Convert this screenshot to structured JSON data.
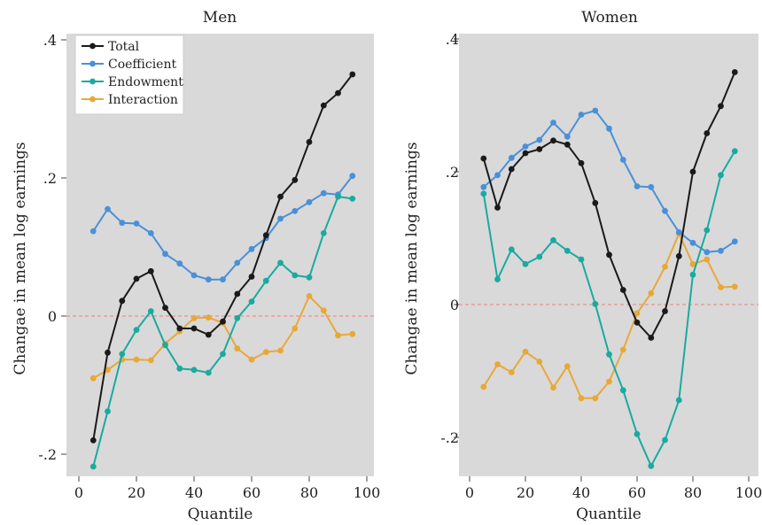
{
  "chart_data": [
    {
      "type": "line",
      "title": "Men",
      "xlabel": "Quantile",
      "ylabel": "Changae in mean log earnings",
      "xlim": [
        0,
        100
      ],
      "ylim": [
        -0.2,
        0.4
      ],
      "xticks": [
        0,
        20,
        40,
        60,
        80,
        100
      ],
      "xtick_labels": [
        "0",
        "20",
        "40",
        "60",
        "80",
        "100"
      ],
      "yticks": [
        -0.2,
        0,
        0.2,
        0.4
      ],
      "ytick_labels": [
        "-.2",
        "0",
        ".2",
        ".4"
      ],
      "zero_line": 0,
      "grid": false,
      "legend_position": "top-left",
      "x": [
        5,
        10,
        15,
        20,
        25,
        30,
        35,
        40,
        45,
        50,
        55,
        60,
        65,
        70,
        75,
        80,
        85,
        90,
        95
      ],
      "series": [
        {
          "name": "Total",
          "color": "#1a1a1a",
          "values": [
            -0.18,
            -0.053,
            0.022,
            0.054,
            0.065,
            0.012,
            -0.018,
            -0.018,
            -0.027,
            -0.008,
            0.032,
            0.057,
            0.117,
            0.173,
            0.197,
            0.252,
            0.305,
            0.323,
            0.35
          ]
        },
        {
          "name": "Coefficient",
          "color": "#4a90d9",
          "values": [
            0.123,
            0.155,
            0.135,
            0.134,
            0.12,
            0.09,
            0.076,
            0.059,
            0.053,
            0.053,
            0.077,
            0.097,
            0.113,
            0.141,
            0.152,
            0.165,
            0.178,
            0.176,
            0.203
          ]
        },
        {
          "name": "Endowment",
          "color": "#1aaaa0",
          "values": [
            -0.218,
            -0.138,
            -0.055,
            -0.02,
            0.007,
            -0.042,
            -0.076,
            -0.078,
            -0.082,
            -0.055,
            -0.003,
            0.021,
            0.051,
            0.077,
            0.059,
            0.056,
            0.12,
            0.173,
            0.17
          ]
        },
        {
          "name": "Interaction",
          "color": "#e8a838",
          "values": [
            -0.09,
            -0.078,
            -0.063,
            -0.063,
            -0.064,
            -0.04,
            -0.022,
            -0.003,
            -0.002,
            -0.01,
            -0.047,
            -0.063,
            -0.052,
            -0.05,
            -0.018,
            0.029,
            0.008,
            -0.028,
            -0.026
          ]
        }
      ]
    },
    {
      "type": "line",
      "title": "Women",
      "xlabel": "Quantile",
      "ylabel": "Changae in mean log earnings",
      "xlim": [
        0,
        100
      ],
      "ylim": [
        -0.2,
        0.4
      ],
      "xticks": [
        0,
        20,
        40,
        60,
        80,
        100
      ],
      "xtick_labels": [
        "0",
        "20",
        "40",
        "60",
        "80",
        "100"
      ],
      "yticks": [
        -0.2,
        0,
        0.2,
        0.4
      ],
      "ytick_labels": [
        "-.2",
        "0",
        ".2",
        ".4"
      ],
      "zero_line": 0,
      "grid": false,
      "x": [
        5,
        10,
        15,
        20,
        25,
        30,
        35,
        40,
        45,
        50,
        55,
        60,
        65,
        70,
        75,
        80,
        85,
        90,
        95
      ],
      "series": [
        {
          "name": "Total",
          "color": "#1a1a1a",
          "values": [
            0.22,
            0.146,
            0.204,
            0.228,
            0.234,
            0.247,
            0.241,
            0.213,
            0.153,
            0.075,
            0.022,
            -0.027,
            -0.05,
            -0.01,
            0.073,
            0.2,
            0.258,
            0.299,
            0.35
          ]
        },
        {
          "name": "Coefficient",
          "color": "#4a90d9",
          "values": [
            0.177,
            0.195,
            0.221,
            0.238,
            0.248,
            0.274,
            0.253,
            0.286,
            0.292,
            0.265,
            0.218,
            0.178,
            0.177,
            0.141,
            0.109,
            0.093,
            0.079,
            0.081,
            0.095
          ]
        },
        {
          "name": "Endowment",
          "color": "#1aaaa0",
          "values": [
            0.167,
            0.038,
            0.083,
            0.061,
            0.072,
            0.097,
            0.081,
            0.068,
            0.001,
            -0.075,
            -0.129,
            -0.195,
            -0.243,
            -0.204,
            -0.144,
            0.045,
            0.112,
            0.195,
            0.231
          ]
        },
        {
          "name": "Interaction",
          "color": "#e8a838",
          "values": [
            -0.124,
            -0.09,
            -0.102,
            -0.071,
            -0.086,
            -0.125,
            -0.093,
            -0.141,
            -0.141,
            -0.116,
            -0.068,
            -0.013,
            0.017,
            0.057,
            0.107,
            0.061,
            0.068,
            0.026,
            0.027
          ]
        }
      ]
    }
  ]
}
